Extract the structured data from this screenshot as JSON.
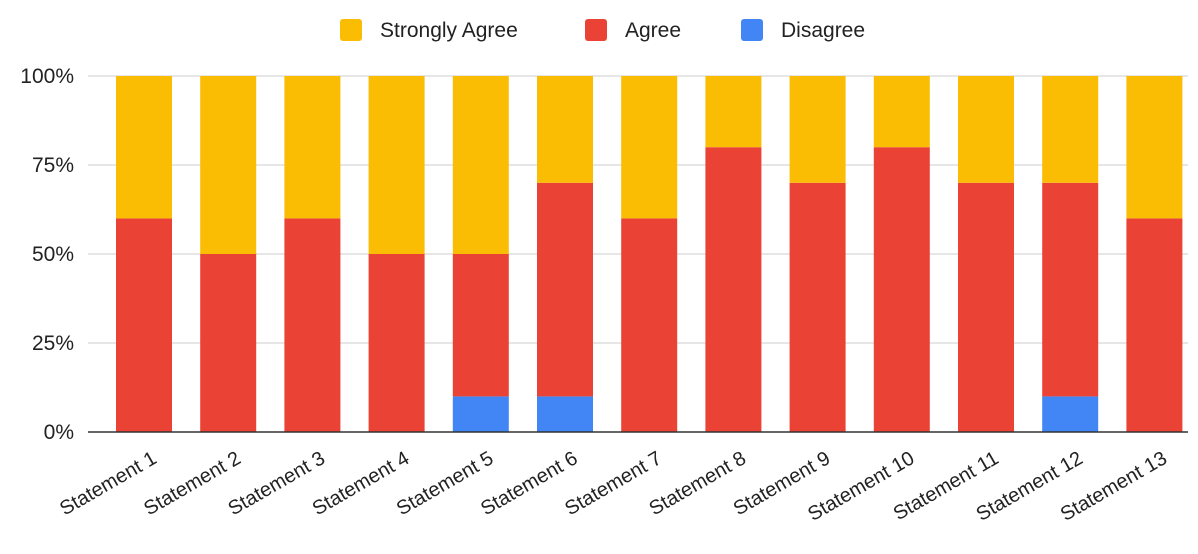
{
  "chart_data": {
    "type": "bar",
    "stacked": true,
    "percent_stacked": true,
    "categories": [
      "Statement 1",
      "Statement 2",
      "Statement 3",
      "Statement 4",
      "Statement 5",
      "Statement 6",
      "Statement 7",
      "Statement 8",
      "Statement 9",
      "Statement 10",
      "Statement 11",
      "Statement 12",
      "Statement 13"
    ],
    "series": [
      {
        "name": "Disagree",
        "color": "#4285f4",
        "values": [
          0,
          0,
          0,
          0,
          10,
          10,
          0,
          0,
          0,
          0,
          0,
          10,
          0
        ]
      },
      {
        "name": "Agree",
        "color": "#ea4335",
        "values": [
          60,
          50,
          60,
          50,
          40,
          60,
          60,
          80,
          70,
          80,
          70,
          60,
          60
        ]
      },
      {
        "name": "Strongly Agree",
        "color": "#fbbc04",
        "values": [
          40,
          50,
          40,
          50,
          50,
          30,
          40,
          20,
          30,
          20,
          30,
          30,
          40
        ]
      }
    ],
    "legend_order": [
      "Strongly Agree",
      "Agree",
      "Disagree"
    ],
    "legend_position": "top",
    "ylim": [
      0,
      100
    ],
    "yticks": [
      "0%",
      "25%",
      "50%",
      "75%",
      "100%"
    ],
    "ytick_values": [
      0,
      25,
      50,
      75,
      100
    ],
    "grid": true,
    "title": "",
    "xlabel": "",
    "ylabel": ""
  }
}
